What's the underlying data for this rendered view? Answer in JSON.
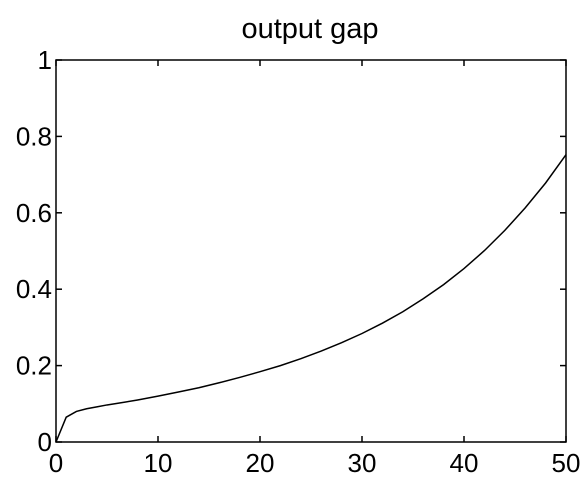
{
  "chart_data": {
    "type": "line",
    "title": "output gap",
    "xlabel": "",
    "ylabel": "",
    "xlim": [
      0,
      50
    ],
    "ylim": [
      0,
      1
    ],
    "x_ticks": [
      0,
      10,
      20,
      30,
      40,
      50
    ],
    "y_ticks": [
      0,
      0.2,
      0.4,
      0.6,
      0.8,
      1
    ],
    "x_tick_labels": [
      "0",
      "10",
      "20",
      "30",
      "40",
      "50"
    ],
    "y_tick_labels": [
      "0",
      "0.2",
      "0.4",
      "0.6",
      "0.8",
      "1"
    ],
    "grid": false,
    "line_color": "#000000",
    "series": [
      {
        "x": [
          0,
          1,
          2,
          3,
          4,
          5,
          6,
          8,
          10,
          12,
          14,
          16,
          18,
          20,
          22,
          24,
          26,
          28,
          30,
          32,
          34,
          36,
          38,
          40,
          42,
          44,
          46,
          48,
          50
        ],
        "y": [
          0.0,
          0.065,
          0.08,
          0.087,
          0.092,
          0.097,
          0.101,
          0.11,
          0.12,
          0.131,
          0.142,
          0.155,
          0.169,
          0.184,
          0.2,
          0.218,
          0.238,
          0.26,
          0.284,
          0.311,
          0.341,
          0.375,
          0.412,
          0.454,
          0.501,
          0.554,
          0.613,
          0.678,
          0.752
        ]
      }
    ]
  }
}
